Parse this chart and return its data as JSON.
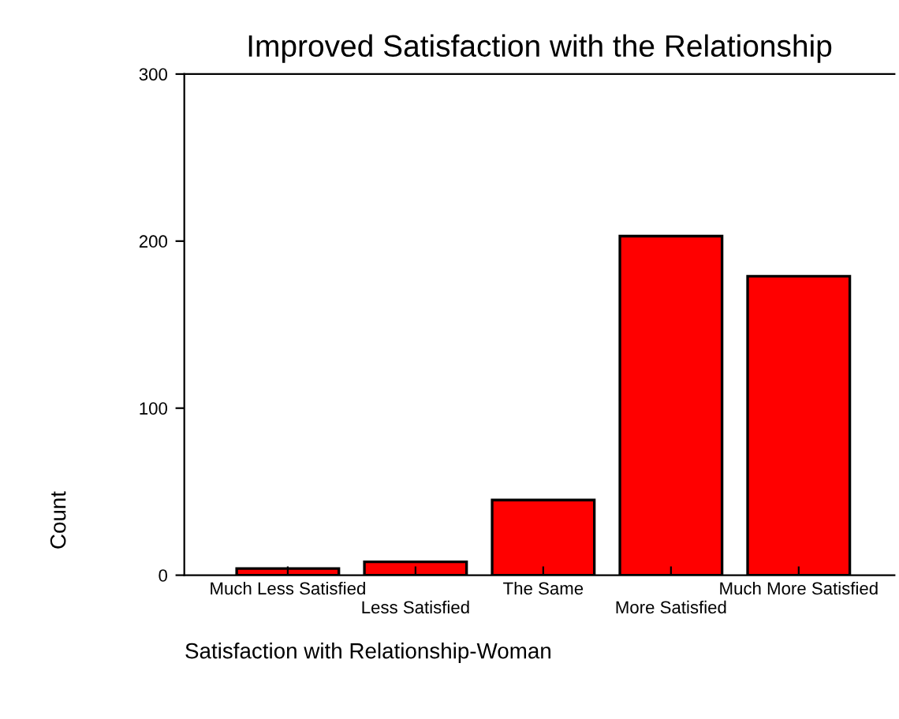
{
  "chart_data": {
    "type": "bar",
    "title": "Improved Satisfaction with the Relationship",
    "xlabel": "Satisfaction with Relationship-Woman",
    "ylabel": "Count",
    "categories": [
      "Much Less Satisfied",
      "Less Satisfied",
      "The Same",
      "More Satisfied",
      "Much More Satisfied"
    ],
    "values": [
      4,
      8,
      45,
      203,
      179
    ],
    "color": "#ff0000",
    "ylim": [
      0,
      300
    ],
    "yticks": [
      0,
      100,
      200,
      300
    ],
    "grid": false
  }
}
